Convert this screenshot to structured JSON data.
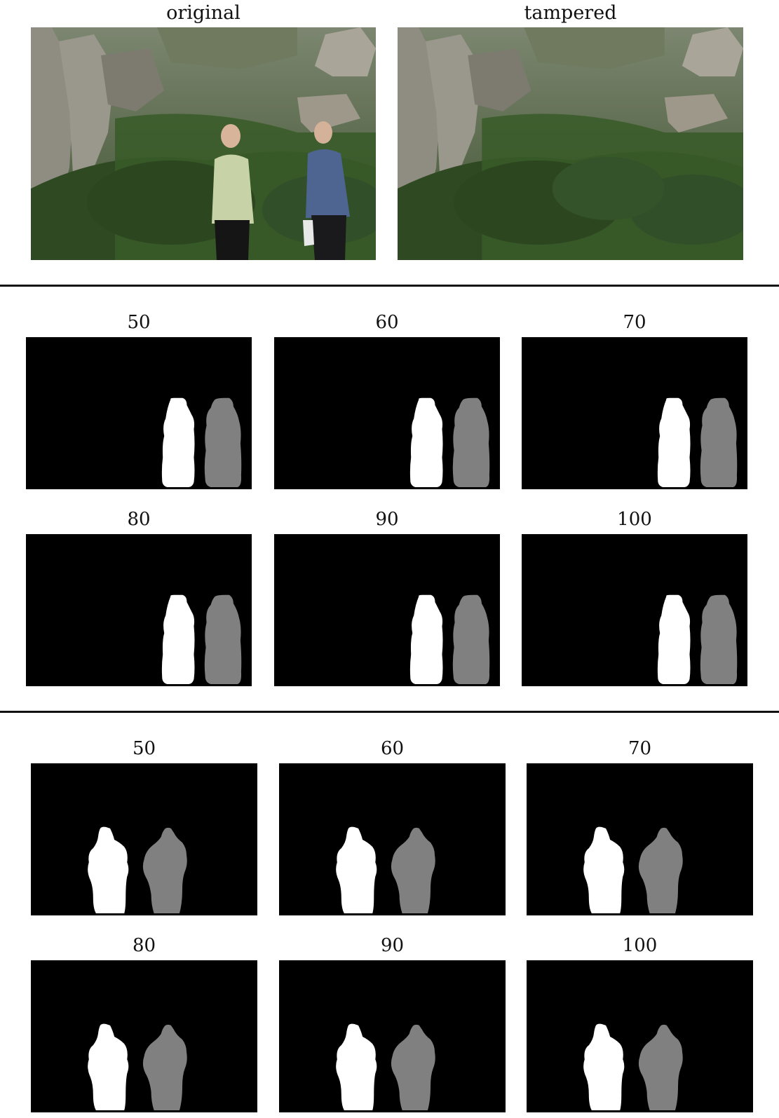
{
  "top": {
    "original_label": "original",
    "tampered_label": "tampered"
  },
  "block1": {
    "labels": [
      "50",
      "60",
      "70",
      "80",
      "90",
      "100"
    ]
  },
  "block2": {
    "labels": [
      "50",
      "60",
      "70",
      "80",
      "90",
      "100"
    ]
  },
  "colors": {
    "mask_background": "#000000",
    "region_primary": "#ffffff",
    "region_secondary": "#808080"
  }
}
